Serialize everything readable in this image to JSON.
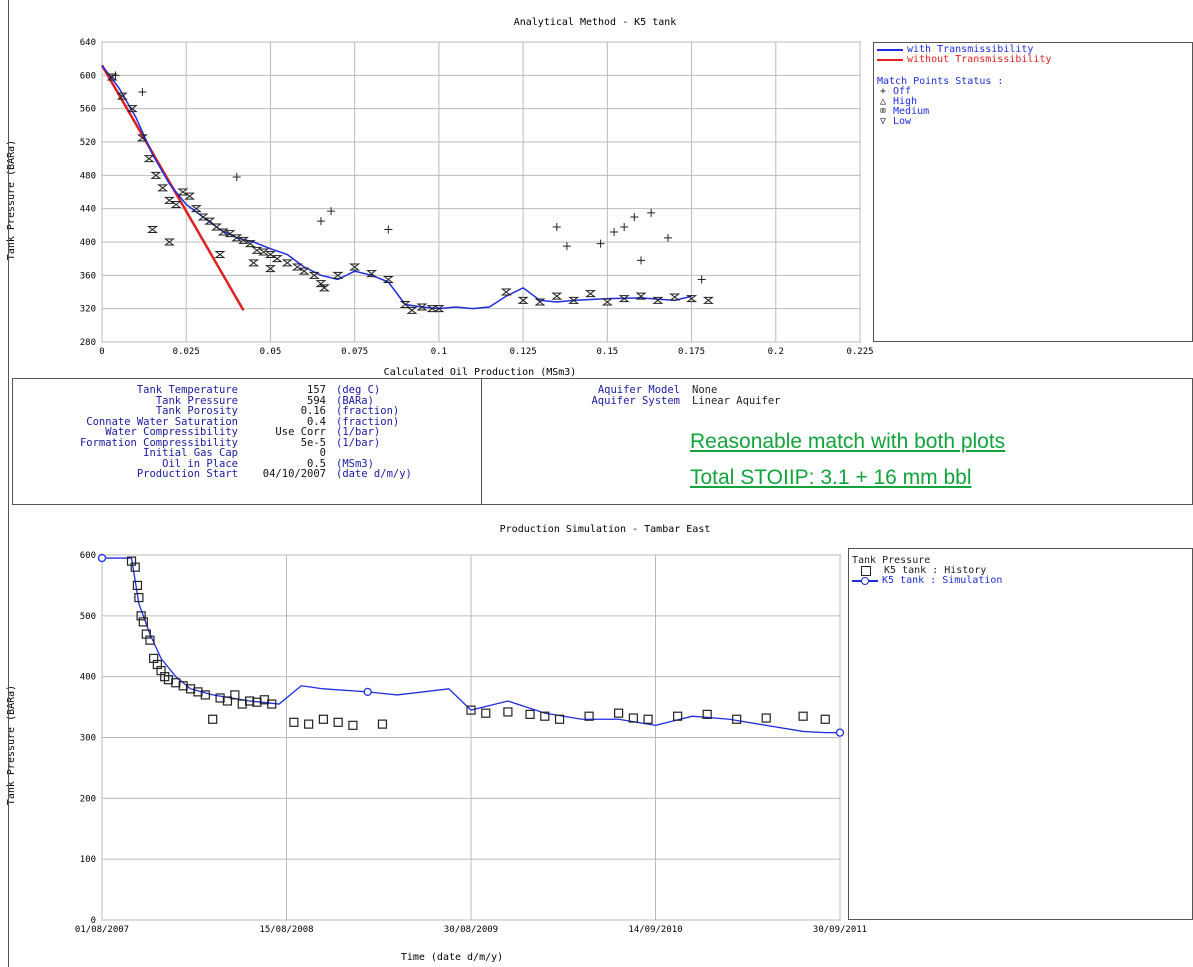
{
  "chart_data": [
    {
      "type": "scatter",
      "title": "Analytical Method - K5 tank",
      "xlabel": "Calculated Oil Production (MSm3)",
      "ylabel": "Tank Pressure (BARa)",
      "xlim": [
        0,
        0.225
      ],
      "ylim": [
        280,
        640
      ],
      "xticks": [
        "0",
        "0.025",
        "0.05",
        "0.075",
        "0.1",
        "0.125",
        "0.15",
        "0.175",
        "0.2",
        "0.225"
      ],
      "yticks": [
        "280",
        "320",
        "360",
        "400",
        "440",
        "480",
        "520",
        "560",
        "600",
        "640"
      ],
      "grid": true,
      "legend_position": "right",
      "legend_lines": [
        {
          "name": "with Transmissibility",
          "color": "#1e2de0"
        },
        {
          "name": "without Transmissibility",
          "color": "#e02020"
        }
      ],
      "match_status_title": "Match Points Status :",
      "match_status": [
        {
          "symbol": "+",
          "label": "Off"
        },
        {
          "symbol": "△",
          "label": "High"
        },
        {
          "symbol": "⌧",
          "label": "Medium"
        },
        {
          "symbol": "▽",
          "label": "Low"
        }
      ],
      "series": [
        {
          "name": "without Transmissibility",
          "color": "#e02020",
          "x": [
            0.0,
            0.042
          ],
          "y": [
            612,
            318
          ]
        },
        {
          "name": "with Transmissibility",
          "color": "#1e2de0",
          "x": [
            0.0,
            0.005,
            0.01,
            0.015,
            0.02,
            0.025,
            0.03,
            0.035,
            0.04,
            0.045,
            0.05,
            0.055,
            0.06,
            0.065,
            0.07,
            0.075,
            0.08,
            0.085,
            0.09,
            0.095,
            0.1,
            0.105,
            0.11,
            0.115,
            0.12,
            0.125,
            0.13,
            0.135,
            0.14,
            0.15,
            0.16,
            0.17,
            0.175
          ],
          "y": [
            612,
            585,
            550,
            505,
            470,
            445,
            430,
            415,
            405,
            400,
            392,
            385,
            370,
            360,
            355,
            365,
            360,
            352,
            325,
            322,
            320,
            322,
            320,
            322,
            335,
            345,
            330,
            328,
            330,
            332,
            333,
            330,
            335
          ]
        },
        {
          "name": "Medium",
          "marker": "medium",
          "x": [
            0.003,
            0.006,
            0.009,
            0.012,
            0.014,
            0.016,
            0.018,
            0.02,
            0.022,
            0.024,
            0.026,
            0.028,
            0.03,
            0.032,
            0.034,
            0.036,
            0.038,
            0.04,
            0.042,
            0.044,
            0.046,
            0.048,
            0.05,
            0.052,
            0.055,
            0.058,
            0.06,
            0.063,
            0.066,
            0.07,
            0.075,
            0.08,
            0.085,
            0.09,
            0.095,
            0.1,
            0.12,
            0.125,
            0.13,
            0.135,
            0.14,
            0.145,
            0.15,
            0.155,
            0.16,
            0.165,
            0.17,
            0.175,
            0.18,
            0.015,
            0.02,
            0.035,
            0.045,
            0.05,
            0.065,
            0.092,
            0.098
          ],
          "y": [
            598,
            575,
            560,
            525,
            500,
            480,
            465,
            450,
            445,
            460,
            455,
            440,
            430,
            425,
            418,
            412,
            410,
            405,
            402,
            398,
            390,
            388,
            385,
            380,
            375,
            370,
            365,
            360,
            345,
            360,
            370,
            362,
            355,
            325,
            322,
            320,
            340,
            330,
            328,
            335,
            330,
            338,
            328,
            332,
            335,
            330,
            334,
            332,
            330,
            415,
            400,
            385,
            375,
            368,
            350,
            318,
            320
          ]
        },
        {
          "name": "Off",
          "marker": "off",
          "x": [
            0.004,
            0.012,
            0.04,
            0.065,
            0.068,
            0.085,
            0.135,
            0.138,
            0.148,
            0.152,
            0.155,
            0.158,
            0.16,
            0.163,
            0.168,
            0.178
          ],
          "y": [
            600,
            580,
            478,
            425,
            437,
            415,
            418,
            395,
            398,
            412,
            418,
            430,
            378,
            435,
            405,
            355
          ]
        }
      ]
    },
    {
      "type": "line",
      "title": "Production Simulation - Tambar East",
      "xlabel": "Time (date d/m/y)",
      "ylabel": "Tank Pressure (BARa)",
      "xticks": [
        "01/08/2007",
        "15/08/2008",
        "30/08/2009",
        "14/09/2010",
        "30/09/2011"
      ],
      "yticks": [
        "0",
        "100",
        "200",
        "300",
        "400",
        "500",
        "600"
      ],
      "ylim": [
        0,
        600
      ],
      "grid": true,
      "legend_position": "right",
      "legend_title": "Tank Pressure",
      "legend_entries": [
        "K5 tank : History",
        "K5 tank : Simulation"
      ],
      "x_unit_note": "fraction of axis span between 01/08/2007 and 30/09/2011",
      "series": [
        {
          "name": "K5 tank : Simulation",
          "color": "#1e2de0",
          "x": [
            0.0,
            0.015,
            0.04,
            0.05,
            0.065,
            0.08,
            0.1,
            0.12,
            0.15,
            0.2,
            0.24,
            0.27,
            0.3,
            0.36,
            0.4,
            0.47,
            0.5,
            0.55,
            0.6,
            0.65,
            0.7,
            0.75,
            0.8,
            0.85,
            0.9,
            0.95,
            0.98,
            1.0
          ],
          "y": [
            595,
            595,
            595,
            520,
            470,
            430,
            400,
            380,
            370,
            360,
            355,
            385,
            380,
            375,
            370,
            380,
            345,
            360,
            340,
            330,
            330,
            320,
            335,
            330,
            320,
            310,
            308,
            308
          ]
        },
        {
          "name": "K5 tank : History",
          "x": [
            0.04,
            0.045,
            0.048,
            0.05,
            0.053,
            0.056,
            0.06,
            0.065,
            0.07,
            0.075,
            0.08,
            0.085,
            0.09,
            0.1,
            0.11,
            0.12,
            0.13,
            0.14,
            0.15,
            0.16,
            0.17,
            0.18,
            0.19,
            0.2,
            0.21,
            0.22,
            0.23,
            0.26,
            0.28,
            0.3,
            0.32,
            0.34,
            0.38,
            0.5,
            0.52,
            0.55,
            0.58,
            0.6,
            0.62,
            0.66,
            0.7,
            0.72,
            0.74,
            0.78,
            0.82,
            0.86,
            0.9,
            0.95,
            0.98
          ],
          "y": [
            590,
            580,
            550,
            530,
            500,
            490,
            470,
            460,
            430,
            420,
            410,
            400,
            395,
            390,
            385,
            380,
            375,
            370,
            330,
            365,
            360,
            370,
            355,
            360,
            358,
            362,
            355,
            325,
            322,
            330,
            325,
            320,
            322,
            345,
            340,
            342,
            338,
            335,
            330,
            335,
            340,
            332,
            330,
            335,
            338,
            330,
            332,
            335,
            330
          ]
        }
      ]
    }
  ],
  "params": {
    "rows": [
      {
        "name": "Tank Temperature",
        "value": "157",
        "unit": "(deg C)"
      },
      {
        "name": "Tank Pressure",
        "value": "594",
        "unit": "(BARa)"
      },
      {
        "name": "Tank Porosity",
        "value": "0.16",
        "unit": "(fraction)"
      },
      {
        "name": "Connate Water Saturation",
        "value": "0.4",
        "unit": "(fraction)"
      },
      {
        "name": "Water Compressibility",
        "value": "Use Corr",
        "unit": "(1/bar)"
      },
      {
        "name": "Formation Compressibility",
        "value": "5e-5",
        "unit": "(1/bar)"
      },
      {
        "name": "Initial Gas Cap",
        "value": "0",
        "unit": ""
      },
      {
        "name": "Oil in Place",
        "value": "0.5",
        "unit": "(MSm3)"
      },
      {
        "name": "Production Start",
        "value": "04/10/2007",
        "unit": "(date d/m/y)"
      }
    ],
    "aquifer": [
      {
        "name": "Aquifer Model",
        "value": "None"
      },
      {
        "name": "Aquifer System",
        "value": "Linear Aquifer"
      }
    ]
  },
  "note": {
    "line1": "Reasonable match with both plots",
    "line2": "Total STOIIP: 3.1 + 16 mm bbl"
  }
}
